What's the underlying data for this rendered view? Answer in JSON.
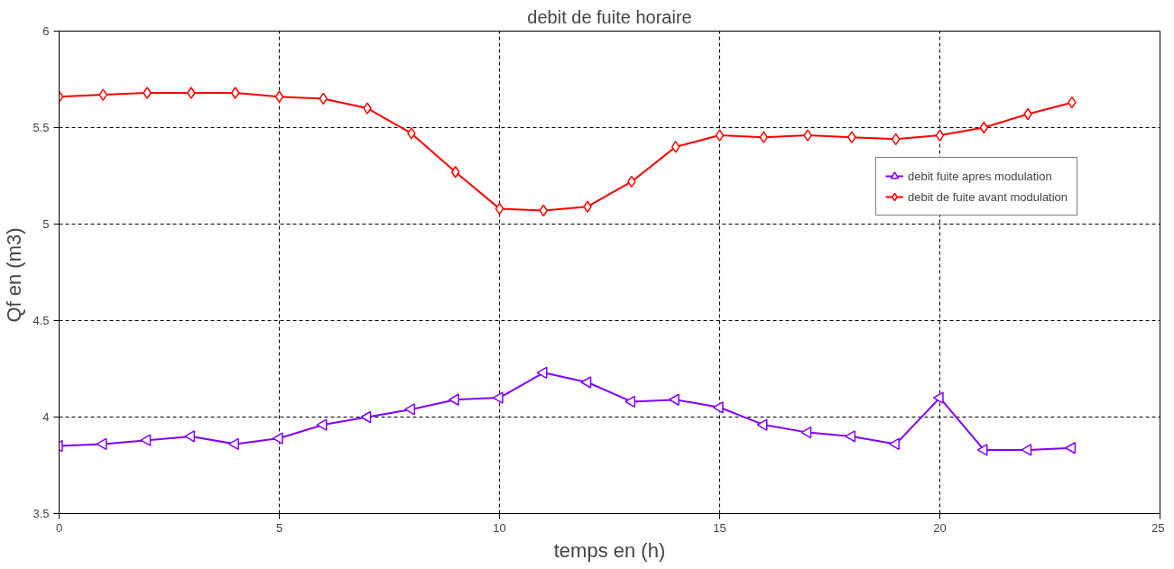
{
  "chart_data": {
    "type": "line",
    "title": "debit de fuite horaire",
    "xlabel": "temps en (h)",
    "ylabel": "Qf en  (m3)",
    "x": [
      0,
      1,
      2,
      3,
      4,
      5,
      6,
      7,
      8,
      9,
      10,
      11,
      12,
      13,
      14,
      15,
      16,
      17,
      18,
      19,
      20,
      21,
      22,
      23
    ],
    "series": [
      {
        "name": "debit fuite apres modulation",
        "color": "#8000ff",
        "marker": "triangle",
        "values": [
          3.85,
          3.86,
          3.88,
          3.9,
          3.86,
          3.89,
          3.96,
          4.0,
          4.04,
          4.09,
          4.1,
          4.23,
          4.18,
          4.08,
          4.09,
          4.05,
          3.96,
          3.92,
          3.9,
          3.86,
          4.1,
          3.83,
          3.83,
          3.84
        ]
      },
      {
        "name": "debit de fuite avant modulation",
        "color": "#ff0000",
        "marker": "diamond",
        "values": [
          5.66,
          5.67,
          5.68,
          5.68,
          5.68,
          5.66,
          5.65,
          5.6,
          5.47,
          5.27,
          5.08,
          5.07,
          5.09,
          5.22,
          5.4,
          5.46,
          5.45,
          5.46,
          5.45,
          5.44,
          5.46,
          5.5,
          5.57,
          5.63
        ]
      }
    ],
    "xlim": [
      0,
      25
    ],
    "xticks": [
      0,
      5,
      10,
      15,
      20,
      25
    ],
    "ylim": [
      3.5,
      6
    ],
    "yticks": [
      3.5,
      4,
      4.5,
      5,
      5.5,
      6
    ],
    "grid": true,
    "legend": "right",
    "line_style": "solid"
  }
}
